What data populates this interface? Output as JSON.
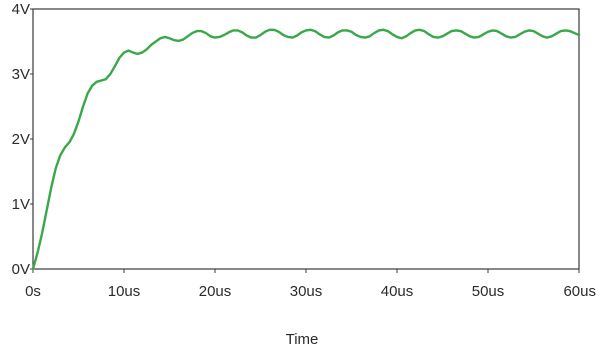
{
  "chart_data": {
    "type": "line",
    "title": "",
    "xlabel": "Time",
    "ylabel": "",
    "x_unit": "us",
    "y_unit": "V",
    "xlim": [
      0,
      60
    ],
    "ylim": [
      0,
      4
    ],
    "grid": false,
    "legend": "none",
    "x_ticks": [
      {
        "value": 0,
        "label": "0s"
      },
      {
        "value": 10,
        "label": "10us"
      },
      {
        "value": 20,
        "label": "20us"
      },
      {
        "value": 30,
        "label": "30us"
      },
      {
        "value": 40,
        "label": "40us"
      },
      {
        "value": 50,
        "label": "50us"
      },
      {
        "value": 60,
        "label": "60us"
      }
    ],
    "y_ticks": [
      {
        "value": 0,
        "label": "0V"
      },
      {
        "value": 1,
        "label": "1V"
      },
      {
        "value": 2,
        "label": "2V"
      },
      {
        "value": 3,
        "label": "3V"
      },
      {
        "value": 4,
        "label": "4V"
      }
    ],
    "series": [
      {
        "color": "#3aa84a",
        "x": [
          0,
          0.5,
          1,
          1.5,
          2,
          2.5,
          3,
          3.5,
          4,
          4.5,
          5,
          5.5,
          6,
          6.5,
          7,
          7.5,
          8,
          8.5,
          9,
          9.5,
          10,
          10.5,
          11,
          11.5,
          12,
          12.5,
          13,
          13.5,
          14,
          14.5,
          15,
          15.5,
          16,
          16.5,
          17,
          17.5,
          18,
          18.5,
          19,
          19.5,
          20,
          20.5,
          21,
          21.5,
          22,
          22.5,
          23,
          23.5,
          24,
          24.5,
          25,
          25.5,
          26,
          26.5,
          27,
          27.5,
          28,
          28.5,
          29,
          29.5,
          30,
          30.5,
          31,
          31.5,
          32,
          32.5,
          33,
          33.5,
          34,
          34.5,
          35,
          35.5,
          36,
          36.5,
          37,
          37.5,
          38,
          38.5,
          39,
          39.5,
          40,
          40.5,
          41,
          41.5,
          42,
          42.5,
          43,
          43.5,
          44,
          44.5,
          45,
          45.5,
          46,
          46.5,
          47,
          47.5,
          48,
          48.5,
          49,
          49.5,
          50,
          50.5,
          51,
          51.5,
          52,
          52.5,
          53,
          53.5,
          54,
          54.5,
          55,
          55.5,
          56,
          56.5,
          57,
          57.5,
          58,
          58.5,
          59,
          59.5,
          60
        ],
        "y": [
          0,
          0.25,
          0.55,
          0.9,
          1.25,
          1.55,
          1.75,
          1.87,
          1.95,
          2.08,
          2.27,
          2.5,
          2.7,
          2.82,
          2.88,
          2.9,
          2.92,
          3.0,
          3.12,
          3.25,
          3.33,
          3.36,
          3.33,
          3.31,
          3.33,
          3.38,
          3.45,
          3.5,
          3.55,
          3.57,
          3.55,
          3.52,
          3.51,
          3.53,
          3.58,
          3.63,
          3.66,
          3.66,
          3.63,
          3.58,
          3.56,
          3.57,
          3.6,
          3.64,
          3.67,
          3.67,
          3.64,
          3.59,
          3.56,
          3.56,
          3.6,
          3.65,
          3.68,
          3.68,
          3.65,
          3.6,
          3.57,
          3.56,
          3.59,
          3.64,
          3.67,
          3.68,
          3.66,
          3.61,
          3.57,
          3.56,
          3.59,
          3.64,
          3.67,
          3.67,
          3.65,
          3.6,
          3.57,
          3.56,
          3.58,
          3.63,
          3.67,
          3.68,
          3.66,
          3.61,
          3.57,
          3.55,
          3.58,
          3.63,
          3.67,
          3.68,
          3.66,
          3.61,
          3.57,
          3.56,
          3.58,
          3.62,
          3.66,
          3.67,
          3.66,
          3.62,
          3.58,
          3.56,
          3.57,
          3.61,
          3.65,
          3.67,
          3.66,
          3.62,
          3.58,
          3.56,
          3.57,
          3.61,
          3.65,
          3.67,
          3.66,
          3.62,
          3.58,
          3.56,
          3.58,
          3.62,
          3.66,
          3.67,
          3.66,
          3.63,
          3.6
        ]
      }
    ]
  }
}
